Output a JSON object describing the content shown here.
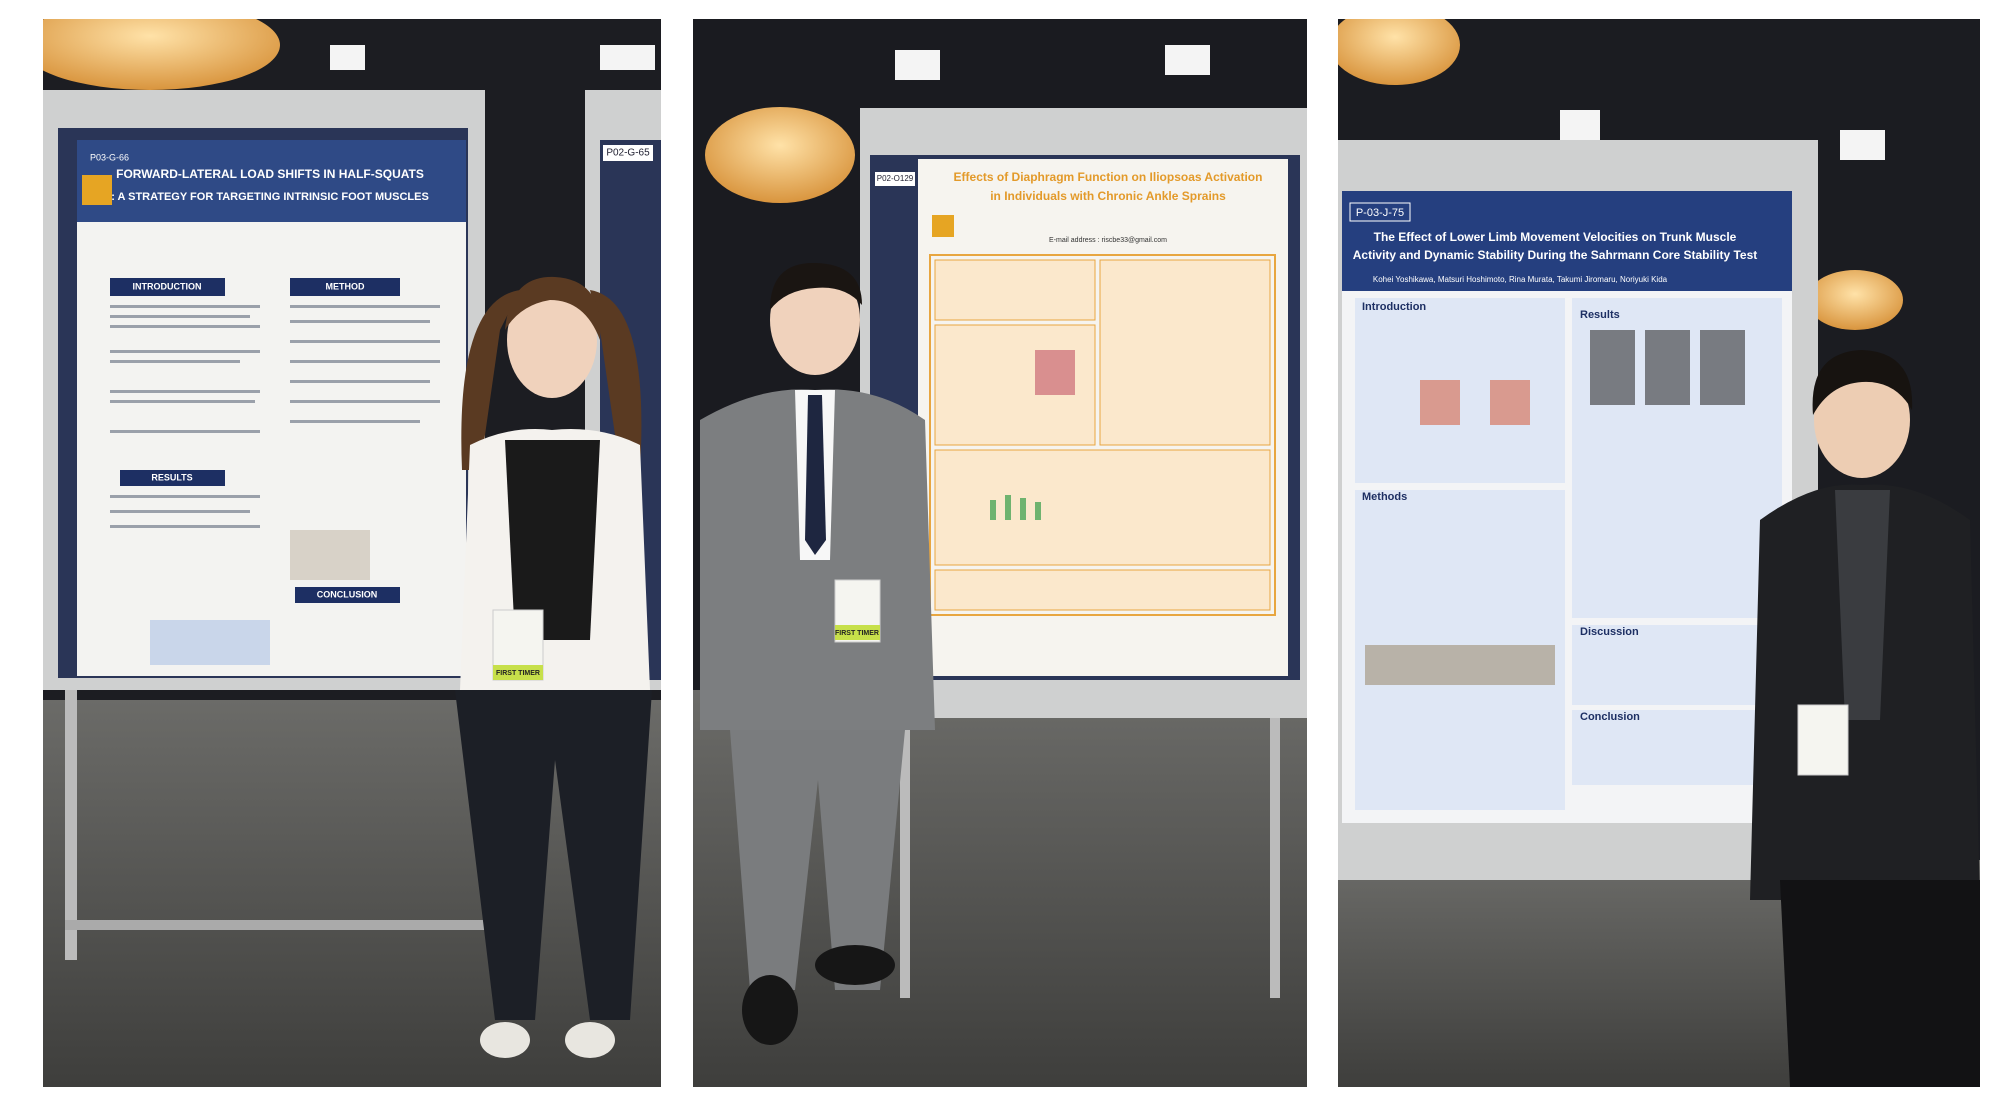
{
  "photos": [
    {
      "neighbor_code": "P02-G-65",
      "poster": {
        "code": "P03-G-66",
        "title": [
          "FORWARD-LATERAL LOAD SHIFTS IN HALF-SQUATS",
          ": A STRATEGY FOR TARGETING INTRINSIC FOOT MUSCLES"
        ],
        "sections": [
          "INTRODUCTION",
          "METHOD",
          "RESULTS",
          "CONCLUSION"
        ]
      },
      "badge": "FIRST TIMER"
    },
    {
      "poster": {
        "code": "P02-O129",
        "title": [
          "Effects of Diaphragm Function on Iliopsoas Activation",
          "in Individuals with Chronic Ankle Sprains"
        ],
        "email": "E-mail address : riscbe33@gmail.com"
      },
      "badge": "FIRST TIMER"
    },
    {
      "poster": {
        "code": "P-03-J-75",
        "title": [
          "The Effect of Lower Limb Movement Velocities on Trunk Muscle",
          "Activity and Dynamic Stability During the Sahrmann Core Stability Test"
        ],
        "authors": "Kohei Yoshikawa, Matsuri Hoshimoto, Rina Murata, Takumi Jiromaru, Noriyuki Kida",
        "sections": [
          "Introduction",
          "Results",
          "Methods",
          "Discussion",
          "Conclusion"
        ]
      }
    }
  ]
}
